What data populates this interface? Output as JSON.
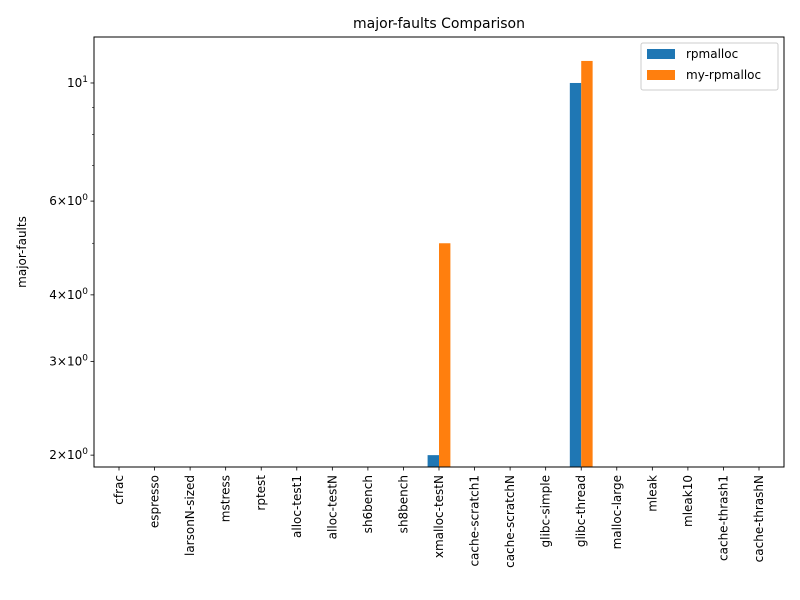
{
  "chart_data": {
    "type": "bar",
    "title": "major-faults Comparison",
    "xlabel": "",
    "ylabel": "major-faults",
    "yscale": "log",
    "ylim": [
      1.9,
      12.2
    ],
    "y_ticks": [
      {
        "value": 2,
        "base": "2",
        "mult": "×",
        "pow": "10",
        "exp": "0"
      },
      {
        "value": 3,
        "base": "3",
        "mult": "×",
        "pow": "10",
        "exp": "0"
      },
      {
        "value": 4,
        "base": "4",
        "mult": "×",
        "pow": "10",
        "exp": "0"
      },
      {
        "value": 6,
        "base": "6",
        "mult": "×",
        "pow": "10",
        "exp": "0"
      },
      {
        "value": 10,
        "base": "",
        "mult": "",
        "pow": "10",
        "exp": "1"
      }
    ],
    "y_minor_ticks": [
      5,
      7,
      8,
      9
    ],
    "categories": [
      "cfrac",
      "espresso",
      "larsonN-sized",
      "mstress",
      "rptest",
      "alloc-test1",
      "alloc-testN",
      "sh6bench",
      "sh8bench",
      "xmalloc-testN",
      "cache-scratch1",
      "cache-scratchN",
      "glibc-simple",
      "glibc-thread",
      "malloc-large",
      "mleak",
      "mleak10",
      "cache-thrash1",
      "cache-thrashN"
    ],
    "series": [
      {
        "name": "rpmalloc",
        "color": "#1f77b4",
        "values": [
          null,
          null,
          null,
          null,
          null,
          null,
          null,
          null,
          null,
          2,
          null,
          null,
          null,
          10,
          null,
          null,
          null,
          null,
          null
        ]
      },
      {
        "name": "my-rpmalloc",
        "color": "#ff7f0e",
        "values": [
          null,
          null,
          null,
          null,
          null,
          null,
          null,
          null,
          null,
          5,
          null,
          null,
          null,
          11,
          null,
          null,
          null,
          null,
          null
        ]
      }
    ],
    "legend_position": "top-right",
    "grid": false
  }
}
